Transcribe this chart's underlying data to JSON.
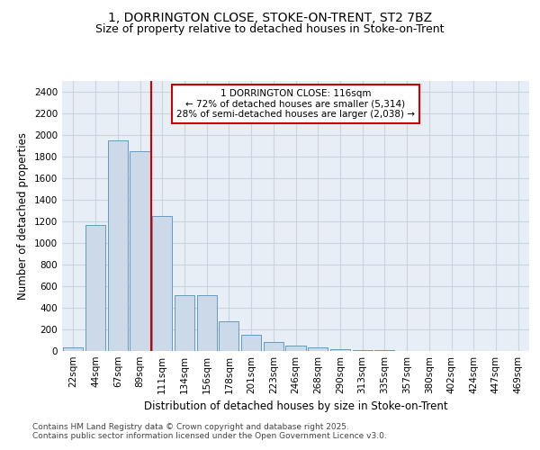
{
  "title_line1": "1, DORRINGTON CLOSE, STOKE-ON-TRENT, ST2 7BZ",
  "title_line2": "Size of property relative to detached houses in Stoke-on-Trent",
  "xlabel": "Distribution of detached houses by size in Stoke-on-Trent",
  "ylabel": "Number of detached properties",
  "categories": [
    "22sqm",
    "44sqm",
    "67sqm",
    "89sqm",
    "111sqm",
    "134sqm",
    "156sqm",
    "178sqm",
    "201sqm",
    "223sqm",
    "246sqm",
    "268sqm",
    "290sqm",
    "313sqm",
    "335sqm",
    "357sqm",
    "380sqm",
    "402sqm",
    "424sqm",
    "447sqm",
    "469sqm"
  ],
  "values": [
    30,
    1170,
    1950,
    1850,
    1250,
    520,
    520,
    275,
    150,
    85,
    50,
    35,
    20,
    10,
    5,
    2,
    1,
    0,
    0,
    0,
    0
  ],
  "bar_color": "#ccd9e8",
  "bar_edge_color": "#6699bb",
  "grid_color": "#c8d4e0",
  "bg_color": "#e8eef5",
  "red_line_x": 4.0,
  "red_line_color": "#cc0000",
  "annotation_text": "1 DORRINGTON CLOSE: 116sqm\n← 72% of detached houses are smaller (5,314)\n28% of semi-detached houses are larger (2,038) →",
  "annotation_box_color": "#ffffff",
  "annotation_border_color": "#cc0000",
  "ylim": [
    0,
    2500
  ],
  "yticks": [
    0,
    200,
    400,
    600,
    800,
    1000,
    1200,
    1400,
    1600,
    1800,
    2000,
    2200,
    2400
  ],
  "footer_line1": "Contains HM Land Registry data © Crown copyright and database right 2025.",
  "footer_line2": "Contains public sector information licensed under the Open Government Licence v3.0.",
  "title_fontsize": 10,
  "subtitle_fontsize": 9,
  "axis_label_fontsize": 8.5,
  "tick_fontsize": 7.5,
  "annotation_fontsize": 7.5,
  "footer_fontsize": 6.5
}
